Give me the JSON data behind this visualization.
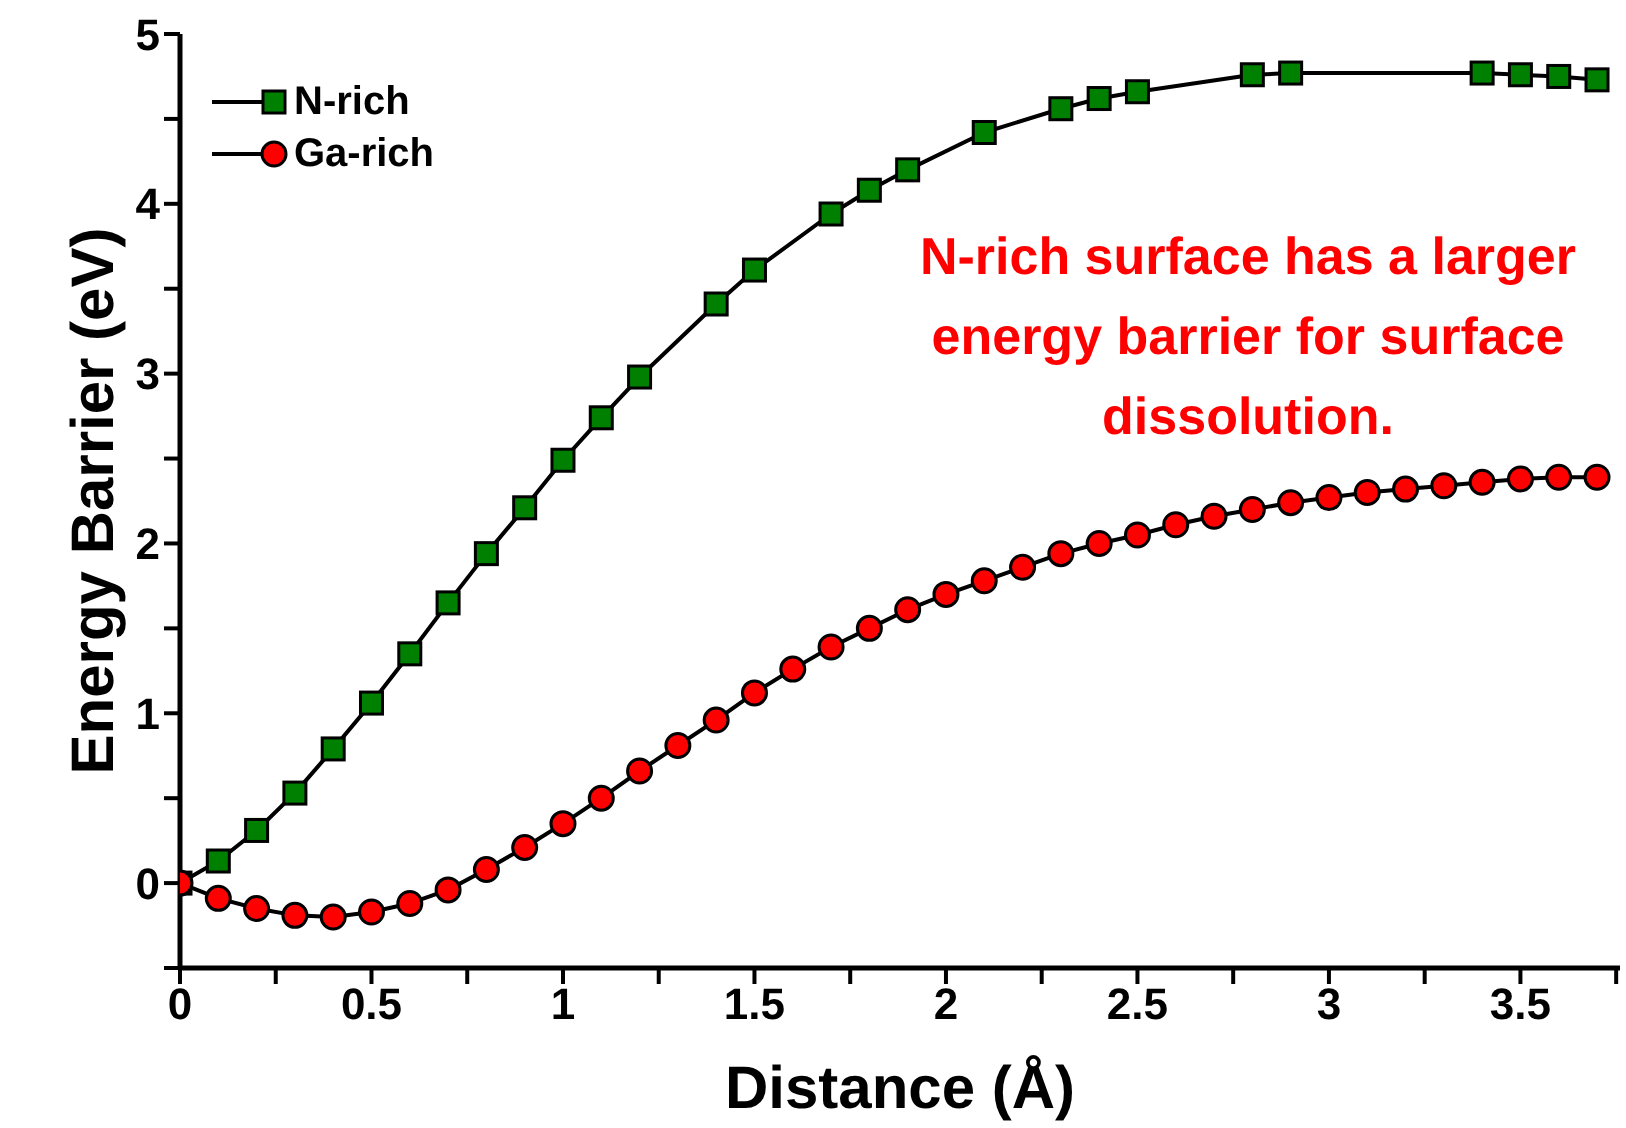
{
  "chart_data": {
    "type": "line",
    "xlabel": "Distance (Å)",
    "ylabel": "Energy Barrier (eV)",
    "annotations": [
      "N-rich surface has a larger energy barrier for surface dissolution."
    ],
    "xlim": [
      0,
      3.76
    ],
    "ylim": [
      -0.5,
      5
    ],
    "xticks": [
      0,
      {
        "value": 0.25,
        "label": null
      },
      0.5,
      {
        "value": 0.75,
        "label": null
      },
      1,
      {
        "value": 1.25,
        "label": null
      },
      1.5,
      {
        "value": 1.75,
        "label": null
      },
      2,
      {
        "value": 2.25,
        "label": null
      },
      2.5,
      {
        "value": 2.75,
        "label": null
      },
      3,
      {
        "value": 3.25,
        "label": null
      },
      3.5,
      {
        "value": 3.75,
        "label": null
      }
    ],
    "yticks": [
      {
        "value": -0.5,
        "label": null
      },
      0,
      {
        "value": 0.5,
        "label": null
      },
      1,
      {
        "value": 1.5,
        "label": null
      },
      2,
      {
        "value": 2.5,
        "label": null
      },
      3,
      {
        "value": 3.5,
        "label": null
      },
      4,
      {
        "value": 4.5,
        "label": null
      },
      5
    ],
    "grid": false,
    "legend": "top left",
    "line_style": "solid",
    "series": [
      {
        "name": "N-rich",
        "color": "#008000",
        "marker": "square",
        "x": [
          0,
          0.1,
          0.2,
          0.3,
          0.4,
          0.5,
          0.6,
          0.7,
          0.8,
          0.9,
          1.0,
          1.1,
          1.2,
          1.4,
          1.5,
          1.7,
          1.8,
          1.9,
          2.1,
          2.3,
          2.4,
          2.5,
          2.8,
          2.9,
          3.4,
          3.5,
          3.6,
          3.7
        ],
        "values": [
          0,
          0.13,
          0.31,
          0.53,
          0.79,
          1.06,
          1.35,
          1.65,
          1.94,
          2.21,
          2.49,
          2.74,
          2.98,
          3.41,
          3.61,
          3.94,
          4.08,
          4.2,
          4.42,
          4.56,
          4.62,
          4.66,
          4.76,
          4.77,
          4.77,
          4.76,
          4.75,
          4.73
        ]
      },
      {
        "name": "Ga-rich",
        "color": "#ff0000",
        "marker": "circle",
        "x": [
          0,
          0.1,
          0.2,
          0.3,
          0.4,
          0.5,
          0.6,
          0.7,
          0.8,
          0.9,
          1.0,
          1.1,
          1.2,
          1.3,
          1.4,
          1.5,
          1.6,
          1.7,
          1.8,
          1.9,
          2.0,
          2.1,
          2.2,
          2.3,
          2.4,
          2.5,
          2.6,
          2.7,
          2.8,
          2.9,
          3.0,
          3.1,
          3.2,
          3.3,
          3.4,
          3.5,
          3.6,
          3.7
        ],
        "values": [
          0,
          -0.09,
          -0.15,
          -0.19,
          -0.2,
          -0.17,
          -0.12,
          -0.04,
          0.08,
          0.21,
          0.35,
          0.5,
          0.66,
          0.81,
          0.96,
          1.12,
          1.26,
          1.39,
          1.5,
          1.61,
          1.7,
          1.78,
          1.86,
          1.94,
          2.0,
          2.05,
          2.11,
          2.16,
          2.2,
          2.24,
          2.27,
          2.3,
          2.32,
          2.34,
          2.36,
          2.38,
          2.39,
          2.39
        ]
      }
    ]
  }
}
